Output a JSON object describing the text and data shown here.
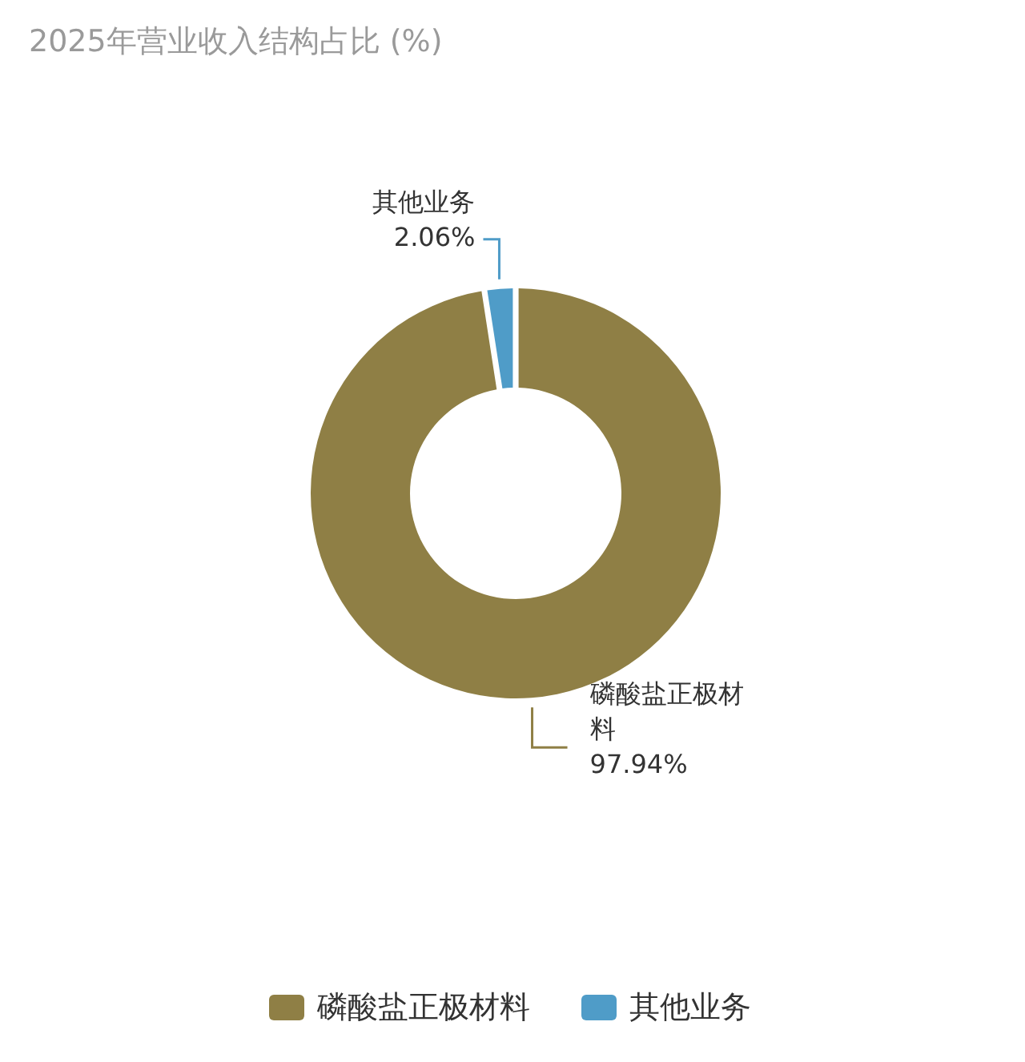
{
  "chart_data": {
    "type": "donut",
    "title": "2025年营业收入结构占比 (%)",
    "categories": [
      "磷酸盐正极材料",
      "其他业务"
    ],
    "values": [
      97.94,
      2.06
    ],
    "colors": [
      "#8f7f45",
      "#4f9cc8"
    ],
    "value_labels": [
      "97.94%",
      "2.06%"
    ],
    "legend": "bottom"
  }
}
